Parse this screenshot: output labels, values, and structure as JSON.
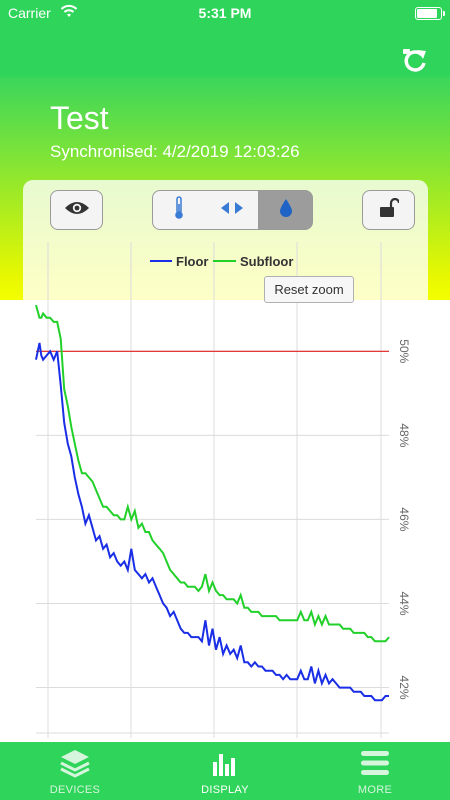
{
  "status_bar": {
    "carrier": "Carrier",
    "time": "5:31 PM",
    "battery_level": 0.92
  },
  "header": {
    "title": "Test",
    "subtitle": "Synchronised: 4/2/2019 12:03:26"
  },
  "toolbar": {
    "view_icon": "eye-icon",
    "segments": [
      {
        "icon": "thermometer-icon",
        "selected": false
      },
      {
        "icon": "horizontal-arrows-icon",
        "selected": false
      },
      {
        "icon": "water-drop-icon",
        "selected": true
      }
    ],
    "lock_icon": "unlocked-padlock-icon"
  },
  "reset_zoom_label": "Reset zoom",
  "colors": {
    "green": "#2fd45a",
    "floor": "#1a2ee6",
    "subfloor": "#22d02a",
    "threshold": "#e02020"
  },
  "chart_data": {
    "type": "line",
    "title": "",
    "xlabel": "",
    "ylabel": "",
    "legend_position": "top-center",
    "ylim": [
      40.8,
      52.6
    ],
    "xlim": [
      0,
      100
    ],
    "y_ticks": [
      "50%",
      "48%",
      "46%",
      "44%",
      "42%"
    ],
    "y_tick_values": [
      50,
      48,
      46,
      44,
      42
    ],
    "threshold": 50,
    "grid": true,
    "series": [
      {
        "name": "Floor",
        "color": "#1a2ee6",
        "x": [
          0,
          1,
          1.5,
          2,
          3,
          4,
          5,
          6,
          7,
          8,
          9,
          10,
          11,
          12,
          13,
          14,
          15,
          16,
          17,
          18,
          19,
          20,
          21,
          22,
          23,
          24,
          25,
          26,
          27,
          28,
          29,
          30,
          31,
          32,
          33,
          34,
          35,
          36,
          37,
          38,
          39,
          40,
          41,
          42,
          43,
          44,
          45,
          46,
          47,
          48,
          49,
          50,
          51,
          52,
          53,
          54,
          55,
          56,
          57,
          58,
          59,
          60,
          61,
          62,
          63,
          64,
          65,
          66,
          67,
          68,
          69,
          70,
          71,
          72,
          73,
          74,
          75,
          76,
          77,
          78,
          79,
          80,
          81,
          82,
          83,
          84,
          85,
          86,
          87,
          88,
          89,
          90,
          91,
          92,
          93,
          94,
          95,
          96,
          97,
          98,
          99,
          100
        ],
        "y": [
          49.8,
          50.2,
          49.9,
          49.8,
          49.9,
          50.0,
          49.8,
          50.0,
          49.2,
          48.3,
          47.8,
          47.5,
          47.0,
          46.6,
          46.3,
          45.9,
          46.1,
          45.8,
          45.5,
          45.6,
          45.3,
          45.4,
          45.1,
          45.2,
          45.0,
          44.9,
          45.0,
          44.8,
          45.3,
          44.8,
          44.7,
          44.6,
          44.7,
          44.5,
          44.6,
          44.4,
          44.2,
          44.0,
          43.9,
          43.7,
          43.8,
          43.6,
          43.4,
          43.3,
          43.3,
          43.2,
          43.2,
          43.2,
          43.1,
          43.6,
          43.0,
          43.4,
          42.9,
          43.2,
          42.8,
          43.0,
          42.8,
          42.9,
          42.7,
          43.0,
          42.6,
          42.6,
          42.5,
          42.6,
          42.5,
          42.5,
          42.4,
          42.4,
          42.4,
          42.3,
          42.3,
          42.2,
          42.3,
          42.2,
          42.2,
          42.2,
          42.4,
          42.2,
          42.2,
          42.5,
          42.1,
          42.4,
          42.1,
          42.3,
          42.1,
          42.2,
          42.1,
          42.0,
          42.0,
          42.0,
          42.0,
          41.9,
          41.9,
          41.9,
          41.8,
          41.8,
          41.8,
          41.7,
          41.7,
          41.7,
          41.8,
          41.8
        ]
      },
      {
        "name": "Subfloor",
        "color": "#22d02a",
        "x": [
          0,
          1,
          1.5,
          2,
          3,
          4,
          5,
          6,
          7,
          8,
          9,
          10,
          11,
          12,
          13,
          14,
          15,
          16,
          17,
          18,
          19,
          20,
          21,
          22,
          23,
          24,
          25,
          26,
          27,
          28,
          29,
          30,
          31,
          32,
          33,
          34,
          35,
          36,
          37,
          38,
          39,
          40,
          41,
          42,
          43,
          44,
          45,
          46,
          47,
          48,
          49,
          50,
          51,
          52,
          53,
          54,
          55,
          56,
          57,
          58,
          59,
          60,
          61,
          62,
          63,
          64,
          65,
          66,
          67,
          68,
          69,
          70,
          71,
          72,
          73,
          74,
          75,
          76,
          77,
          78,
          79,
          80,
          81,
          82,
          83,
          84,
          85,
          86,
          87,
          88,
          89,
          90,
          91,
          92,
          93,
          94,
          95,
          96,
          97,
          98,
          99,
          100
        ],
        "y": [
          51.1,
          50.8,
          50.8,
          50.9,
          50.8,
          50.8,
          50.7,
          50.7,
          50.3,
          49.1,
          48.7,
          48.2,
          47.8,
          47.4,
          47.1,
          47.1,
          47.0,
          46.9,
          46.7,
          46.5,
          46.3,
          46.3,
          46.2,
          46.1,
          46.1,
          46.0,
          46.0,
          46.3,
          46.0,
          46.2,
          45.8,
          45.9,
          45.7,
          45.7,
          45.5,
          45.4,
          45.3,
          45.2,
          45.0,
          44.8,
          44.7,
          44.6,
          44.5,
          44.5,
          44.4,
          44.4,
          44.4,
          44.3,
          44.4,
          44.7,
          44.3,
          44.5,
          44.3,
          44.2,
          44.2,
          44.1,
          44.1,
          44.1,
          44.0,
          44.2,
          43.9,
          43.9,
          43.8,
          43.8,
          43.8,
          43.7,
          43.7,
          43.7,
          43.7,
          43.7,
          43.6,
          43.6,
          43.6,
          43.6,
          43.6,
          43.6,
          43.8,
          43.6,
          43.6,
          43.8,
          43.5,
          43.7,
          43.5,
          43.7,
          43.5,
          43.5,
          43.5,
          43.5,
          43.4,
          43.4,
          43.4,
          43.3,
          43.3,
          43.3,
          43.3,
          43.2,
          43.2,
          43.1,
          43.1,
          43.1,
          43.1,
          43.2
        ]
      }
    ]
  },
  "tabs": [
    {
      "label": "DEVICES",
      "icon": "layers-icon",
      "active": false
    },
    {
      "label": "DISPLAY",
      "icon": "bar-chart-icon",
      "active": true
    },
    {
      "label": "MORE",
      "icon": "menu-icon",
      "active": false
    }
  ]
}
